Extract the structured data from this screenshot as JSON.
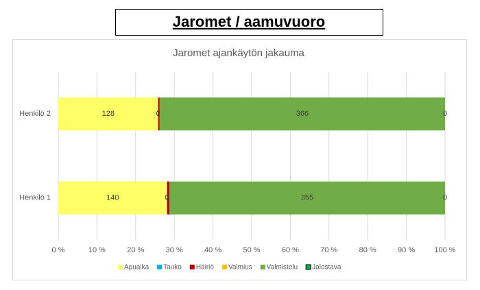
{
  "header": {
    "title": "Jaromet / aamuvuoro"
  },
  "chart_data": {
    "type": "stacked-bar-100",
    "orientation": "horizontal",
    "title": "Jaromet ajankäytön jakauma",
    "categories": [
      "Henkilö 1",
      "Henkilö 2"
    ],
    "series": [
      {
        "name": "Apuaika",
        "color": "#ffff66",
        "values": [
          140,
          128
        ]
      },
      {
        "name": "Tauko",
        "color": "#00b0f0",
        "values": [
          0,
          0
        ]
      },
      {
        "name": "Häiriö",
        "color": "#c00000",
        "values": [
          3,
          2
        ]
      },
      {
        "name": "Valmius",
        "color": "#ffc000",
        "values": [
          0,
          0
        ]
      },
      {
        "name": "Valmistelu",
        "color": "#70ad47",
        "values": [
          355,
          366
        ]
      },
      {
        "name": "Jalostava",
        "color": "#00b050",
        "values": [
          0,
          0
        ]
      }
    ],
    "xlim": [
      0,
      100
    ],
    "xticks": [
      {
        "value": 0,
        "label": "0 %"
      },
      {
        "value": 10,
        "label": "10 %"
      },
      {
        "value": 20,
        "label": "20 %"
      },
      {
        "value": 30,
        "label": "30 %"
      },
      {
        "value": 40,
        "label": "40 %"
      },
      {
        "value": 50,
        "label": "50 %"
      },
      {
        "value": 60,
        "label": "60 %"
      },
      {
        "value": 70,
        "label": "70 %"
      },
      {
        "value": 80,
        "label": "80 %"
      },
      {
        "value": 90,
        "label": "90 %"
      },
      {
        "value": 100,
        "label": "100 %"
      }
    ],
    "grid": true,
    "legend": "bottom"
  }
}
